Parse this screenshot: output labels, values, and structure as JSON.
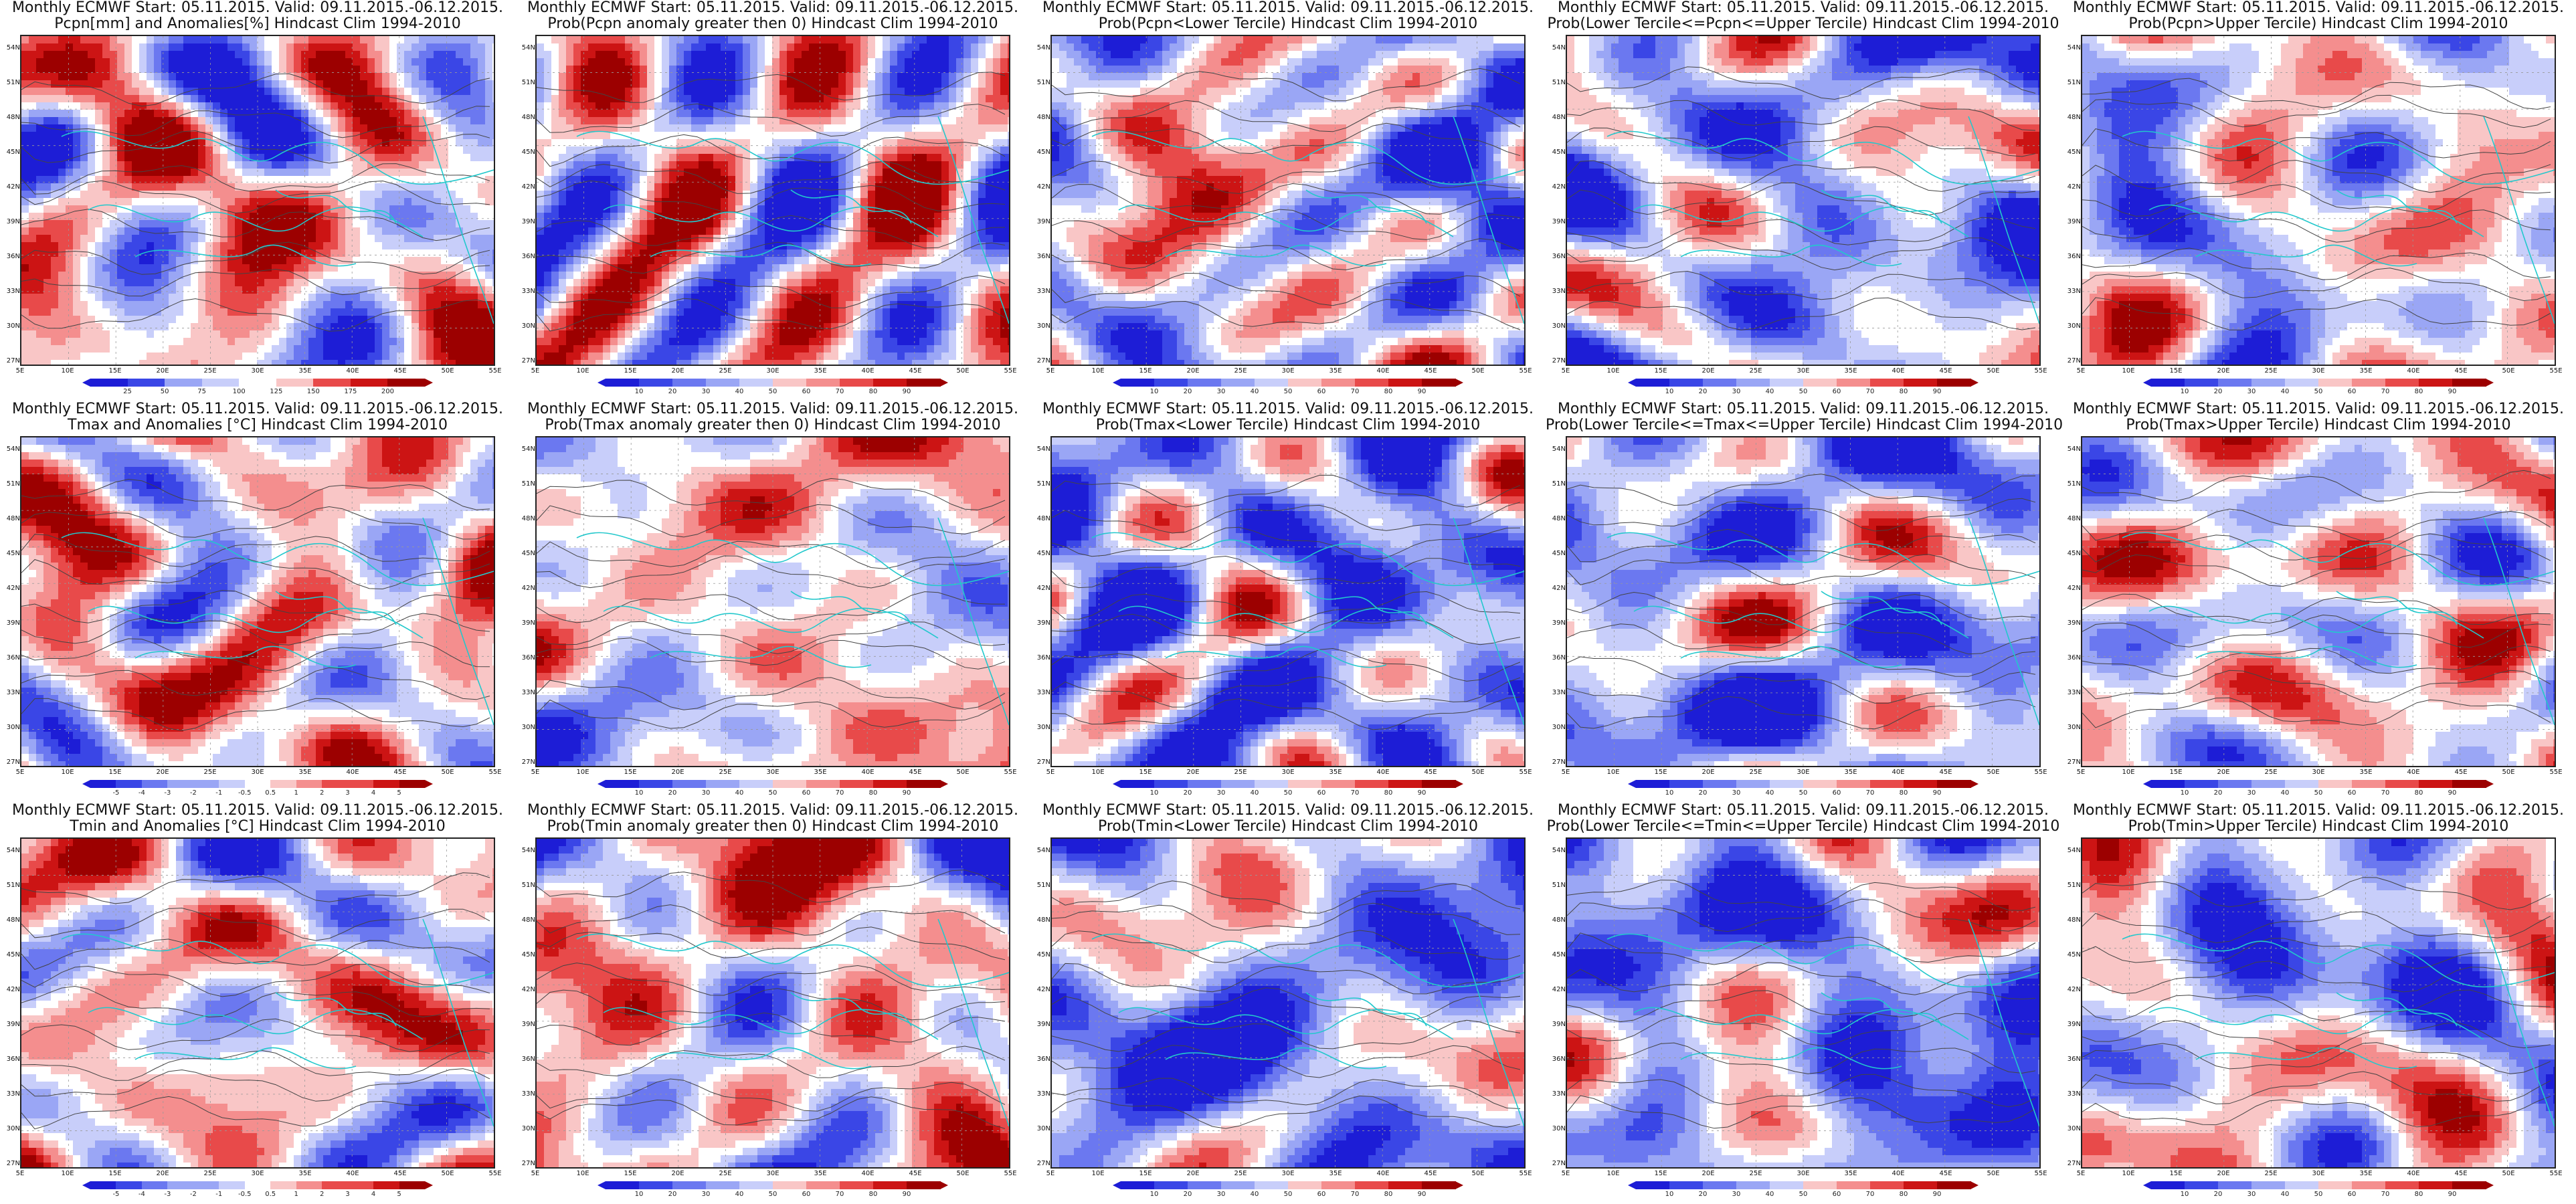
{
  "palette": {
    "blue": [
      "#1d1dd6",
      "#3a46e6",
      "#6b78f0",
      "#9aa6f5",
      "#c8cefa",
      "#ffffff",
      "#f9c6c6",
      "#f48e8e",
      "#e84a4a",
      "#cc1414",
      "#9c0000"
    ],
    "contour": "#444444",
    "coast": "#22c8cc"
  },
  "axes": {
    "lat_labels": [
      "54N",
      "51N",
      "48N",
      "45N",
      "42N",
      "39N",
      "36N",
      "33N",
      "30N",
      "27N"
    ],
    "lon_labels": [
      "5E",
      "10E",
      "15E",
      "20E",
      "25E",
      "30E",
      "35E",
      "40E",
      "45E",
      "50E",
      "55E"
    ]
  },
  "colorbars": {
    "pcpn": [
      "25",
      "50",
      "75",
      "100",
      "125",
      "150",
      "175",
      "200"
    ],
    "anom": [
      "-5",
      "-4",
      "-3",
      "-2",
      "-1",
      "-0.5",
      "0.5",
      "1",
      "2",
      "3",
      "4",
      "5"
    ],
    "prob": [
      "10",
      "20",
      "30",
      "40",
      "50",
      "60",
      "70",
      "80",
      "90"
    ]
  },
  "panels": [
    {
      "title1": "Monthly ECMWF Start: 05.11.2015. Valid: 09.11.2015.-06.12.2015.",
      "title2": "Pcpn[mm] and Anomalies[%] Hindcast Clim 1994-2010",
      "cbar": "pcpn",
      "seed": 11,
      "bias": 0.1
    },
    {
      "title1": "Monthly ECMWF Start: 05.11.2015. Valid: 09.11.2015.-06.12.2015.",
      "title2": "Prob(Pcpn anomaly greater then 0) Hindcast Clim 1994-2010",
      "cbar": "prob",
      "seed": 12,
      "bias": 0.0
    },
    {
      "title1": "Monthly ECMWF Start: 05.11.2015. Valid: 09.11.2015.-06.12.2015.",
      "title2": "Prob(Pcpn<Lower Tercile) Hindcast Clim 1994-2010",
      "cbar": "prob",
      "seed": 13,
      "bias": -0.2
    },
    {
      "title1": "Monthly ECMWF Start: 05.11.2015. Valid: 09.11.2015.-06.12.2015.",
      "title2": "Prob(Lower Tercile<=Pcpn<=Upper Tercile) Hindcast Clim 1994-2010",
      "cbar": "prob",
      "seed": 14,
      "bias": -0.4
    },
    {
      "title1": "Monthly ECMWF Start: 05.11.2015. Valid: 09.11.2015.-06.12.2015.",
      "title2": "Prob(Pcpn>Upper Tercile) Hindcast Clim 1994-2010",
      "cbar": "prob",
      "seed": 15,
      "bias": -0.1
    },
    {
      "title1": "Monthly ECMWF Start: 05.11.2015. Valid: 09.11.2015.-06.12.2015.",
      "title2": "Tmax and Anomalies [°C] Hindcast Clim 1994-2010",
      "cbar": "anom",
      "seed": 21,
      "bias": 0.15
    },
    {
      "title1": "Monthly ECMWF Start: 05.11.2015. Valid: 09.11.2015.-06.12.2015.",
      "title2": "Prob(Tmax anomaly greater then 0) Hindcast Clim 1994-2010",
      "cbar": "prob",
      "seed": 22,
      "bias": 0.2
    },
    {
      "title1": "Monthly ECMWF Start: 05.11.2015. Valid: 09.11.2015.-06.12.2015.",
      "title2": "Prob(Tmax<Lower Tercile) Hindcast Clim 1994-2010",
      "cbar": "prob",
      "seed": 23,
      "bias": -0.6
    },
    {
      "title1": "Monthly ECMWF Start: 05.11.2015. Valid: 09.11.2015.-06.12.2015.",
      "title2": "Prob(Lower Tercile<=Tmax<=Upper Tercile) Hindcast Clim 1994-2010",
      "cbar": "prob",
      "seed": 24,
      "bias": -0.45
    },
    {
      "title1": "Monthly ECMWF Start: 05.11.2015. Valid: 09.11.2015.-06.12.2015.",
      "title2": "Prob(Tmax>Upper Tercile) Hindcast Clim 1994-2010",
      "cbar": "prob",
      "seed": 25,
      "bias": 0.05
    },
    {
      "title1": "Monthly ECMWF Start: 05.11.2015. Valid: 09.11.2015.-06.12.2015.",
      "title2": "Tmin and Anomalies [°C] Hindcast Clim 1994-2010",
      "cbar": "anom",
      "seed": 31,
      "bias": 0.1
    },
    {
      "title1": "Monthly ECMWF Start: 05.11.2015. Valid: 09.11.2015.-06.12.2015.",
      "title2": "Prob(Tmin anomaly greater then 0) Hindcast Clim 1994-2010",
      "cbar": "prob",
      "seed": 32,
      "bias": 0.15
    },
    {
      "title1": "Monthly ECMWF Start: 05.11.2015. Valid: 09.11.2015.-06.12.2015.",
      "title2": "Prob(Tmin<Lower Tercile) Hindcast Clim 1994-2010",
      "cbar": "prob",
      "seed": 33,
      "bias": -0.55
    },
    {
      "title1": "Monthly ECMWF Start: 05.11.2015. Valid: 09.11.2015.-06.12.2015.",
      "title2": "Prob(Lower Tercile<=Tmin<=Upper Tercile) Hindcast Clim 1994-2010",
      "cbar": "prob",
      "seed": 34,
      "bias": -0.5
    },
    {
      "title1": "Monthly ECMWF Start: 05.11.2015. Valid: 09.11.2015.-06.12.2015.",
      "title2": "Prob(Tmin>Upper Tercile) Hindcast Clim 1994-2010",
      "cbar": "prob",
      "seed": 35,
      "bias": -0.2
    }
  ]
}
